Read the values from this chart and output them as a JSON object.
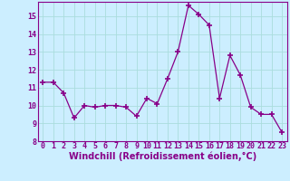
{
  "x": [
    0,
    1,
    2,
    3,
    4,
    5,
    6,
    7,
    8,
    9,
    10,
    11,
    12,
    13,
    14,
    15,
    16,
    17,
    18,
    19,
    20,
    21,
    22,
    23
  ],
  "y": [
    11.3,
    11.3,
    10.7,
    9.3,
    10.0,
    9.9,
    10.0,
    10.0,
    9.9,
    9.4,
    10.4,
    10.1,
    11.5,
    13.0,
    15.6,
    15.1,
    14.5,
    10.4,
    12.8,
    11.7,
    9.9,
    9.5,
    9.5,
    8.5
  ],
  "line_color": "#880088",
  "marker": "+",
  "marker_size": 5,
  "marker_lw": 1.2,
  "bg_color": "#cceeff",
  "grid_color": "#aadddd",
  "xlabel": "Windchill (Refroidissement éolien,°C)",
  "ylim": [
    8,
    15.8
  ],
  "xlim": [
    -0.5,
    23.5
  ],
  "yticks": [
    8,
    9,
    10,
    11,
    12,
    13,
    14,
    15
  ],
  "xticks": [
    0,
    1,
    2,
    3,
    4,
    5,
    6,
    7,
    8,
    9,
    10,
    11,
    12,
    13,
    14,
    15,
    16,
    17,
    18,
    19,
    20,
    21,
    22,
    23
  ],
  "tick_label_fontsize": 6.0,
  "xlabel_fontsize": 7.0,
  "line_width": 0.9
}
